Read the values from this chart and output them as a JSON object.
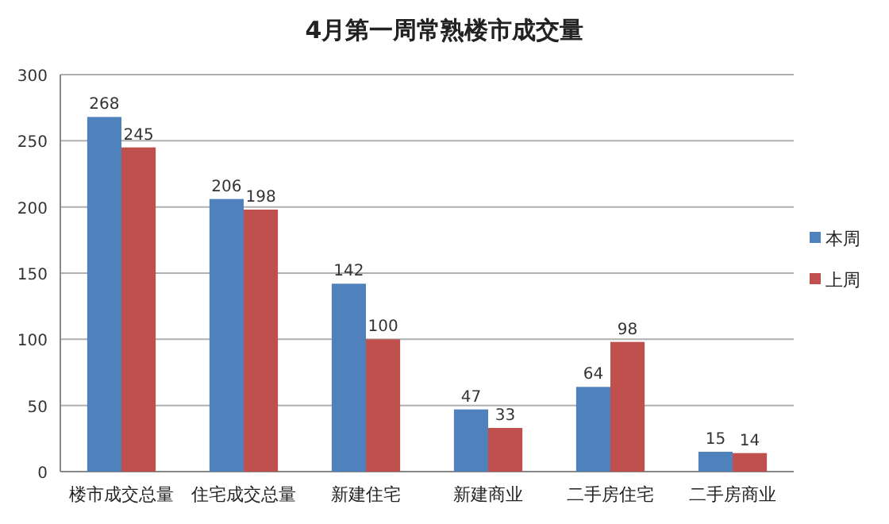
{
  "chart_data": {
    "type": "bar",
    "title": "4月第一周常熟楼市成交量",
    "categories": [
      "楼市成交总量",
      "住宅成交总量",
      "新建住宅",
      "新建商业",
      "二手房住宅",
      "二手房商业"
    ],
    "series": [
      {
        "name": "本周",
        "color": "#4f81bd",
        "values": [
          268,
          206,
          142,
          47,
          64,
          15
        ]
      },
      {
        "name": "上周",
        "color": "#c0504d",
        "values": [
          245,
          198,
          100,
          33,
          98,
          14
        ]
      }
    ],
    "ylim": [
      0,
      300
    ],
    "yticks": [
      0,
      50,
      100,
      150,
      200,
      250,
      300
    ],
    "grid": "y",
    "legend": "right",
    "data_labels": true
  }
}
